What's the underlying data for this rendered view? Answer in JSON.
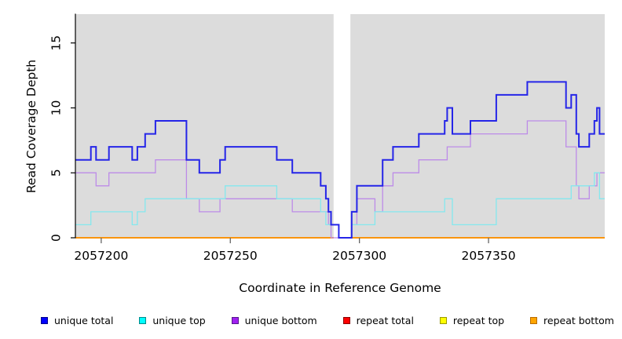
{
  "figure": {
    "background": "#ffffff",
    "plot_background": "#DCDCDC",
    "axis_color": "#000000",
    "x_tick_color": "#666666",
    "gap_band_color": "#ffffff"
  },
  "chart_data": {
    "type": "line",
    "subtype": "step",
    "title": "",
    "xlabel": "Coordinate in Reference Genome",
    "ylabel": "Read Coverage Depth",
    "xlim": [
      2057190,
      2057395
    ],
    "ylim": [
      0,
      17.22
    ],
    "xticks": [
      2057200,
      2057250,
      2057300,
      2057350
    ],
    "xtick_labels": [
      "2057200",
      "2057250",
      "2057300",
      "2057350"
    ],
    "yticks": [
      0,
      5,
      10,
      15
    ],
    "ytick_labels": [
      "0",
      "5",
      "10",
      "15"
    ],
    "grid": false,
    "legend_position": "bottom",
    "gap_region": {
      "from": 2057290,
      "to": 2057296.5
    },
    "series": [
      {
        "name": "repeat total",
        "color": "#DD0000",
        "legend_fill": "#FF0000",
        "legend_border": "#8B0000",
        "width": 1.4,
        "break_at_gap": true,
        "steps": [
          [
            2057190,
            0
          ]
        ]
      },
      {
        "name": "repeat top",
        "color": "#EEEE00",
        "legend_fill": "#FFFF00",
        "legend_border": "#9a9a00",
        "width": 1.4,
        "break_at_gap": true,
        "steps": [
          [
            2057190,
            0
          ]
        ]
      },
      {
        "name": "repeat bottom",
        "color": "#FF8C00",
        "legend_fill": "#FFA500",
        "legend_border": "#b86b00",
        "width": 1.6,
        "break_at_gap": true,
        "steps": [
          [
            2057190,
            0
          ]
        ]
      },
      {
        "name": "unique bottom",
        "color": "#BD8BE8",
        "legend_fill": "#A020F0",
        "legend_border": "#551A8B",
        "width": 1.3,
        "break_at_gap": false,
        "steps": [
          [
            2057190,
            5
          ],
          [
            2057198,
            4
          ],
          [
            2057203,
            5
          ],
          [
            2057221,
            6
          ],
          [
            2057233,
            3
          ],
          [
            2057238,
            2
          ],
          [
            2057246,
            3
          ],
          [
            2057274,
            2
          ],
          [
            2057288,
            1
          ],
          [
            2057289,
            0
          ],
          [
            2057297,
            1
          ],
          [
            2057299,
            3
          ],
          [
            2057306,
            2
          ],
          [
            2057309,
            4
          ],
          [
            2057313,
            5
          ],
          [
            2057323,
            6
          ],
          [
            2057334,
            7
          ],
          [
            2057343,
            8
          ],
          [
            2057365,
            9
          ],
          [
            2057380,
            7
          ],
          [
            2057384,
            4
          ],
          [
            2057385,
            3
          ],
          [
            2057389,
            4
          ],
          [
            2057392,
            5
          ]
        ]
      },
      {
        "name": "unique top",
        "color": "#84E8EE",
        "legend_fill": "#00FFFF",
        "legend_border": "#008B8B",
        "width": 1.3,
        "break_at_gap": false,
        "steps": [
          [
            2057190,
            1
          ],
          [
            2057196,
            2
          ],
          [
            2057212,
            1
          ],
          [
            2057214,
            2
          ],
          [
            2057217,
            3
          ],
          [
            2057248,
            4
          ],
          [
            2057268,
            3
          ],
          [
            2057285,
            2
          ],
          [
            2057287,
            1
          ],
          [
            2057292,
            0
          ],
          [
            2057297,
            1
          ],
          [
            2057306,
            2
          ],
          [
            2057333,
            3
          ],
          [
            2057336,
            1
          ],
          [
            2057353,
            3
          ],
          [
            2057382,
            4
          ],
          [
            2057391,
            5
          ],
          [
            2057393,
            3
          ]
        ]
      },
      {
        "name": "unique total",
        "color": "#2525E8",
        "legend_fill": "#0000FF",
        "legend_border": "#00008B",
        "width": 2,
        "break_at_gap": false,
        "steps": [
          [
            2057190,
            6
          ],
          [
            2057196,
            7
          ],
          [
            2057198,
            6
          ],
          [
            2057203,
            7
          ],
          [
            2057212,
            6
          ],
          [
            2057214,
            7
          ],
          [
            2057217,
            8
          ],
          [
            2057221,
            9
          ],
          [
            2057233,
            6
          ],
          [
            2057238,
            5
          ],
          [
            2057246,
            6
          ],
          [
            2057248,
            7
          ],
          [
            2057268,
            6
          ],
          [
            2057274,
            5
          ],
          [
            2057285,
            4
          ],
          [
            2057287,
            3
          ],
          [
            2057288,
            2
          ],
          [
            2057289,
            1
          ],
          [
            2057292,
            0
          ],
          [
            2057297,
            2
          ],
          [
            2057299,
            4
          ],
          [
            2057309,
            6
          ],
          [
            2057313,
            7
          ],
          [
            2057323,
            8
          ],
          [
            2057333,
            9
          ],
          [
            2057334,
            10
          ],
          [
            2057336,
            8
          ],
          [
            2057343,
            9
          ],
          [
            2057353,
            11
          ],
          [
            2057365,
            12
          ],
          [
            2057380,
            10
          ],
          [
            2057382,
            11
          ],
          [
            2057384,
            8
          ],
          [
            2057385,
            7
          ],
          [
            2057389,
            8
          ],
          [
            2057391,
            9
          ],
          [
            2057392,
            10
          ],
          [
            2057393,
            8
          ]
        ]
      }
    ],
    "legend_order": [
      "unique total",
      "unique top",
      "unique bottom",
      "repeat total",
      "repeat top",
      "repeat bottom"
    ]
  }
}
